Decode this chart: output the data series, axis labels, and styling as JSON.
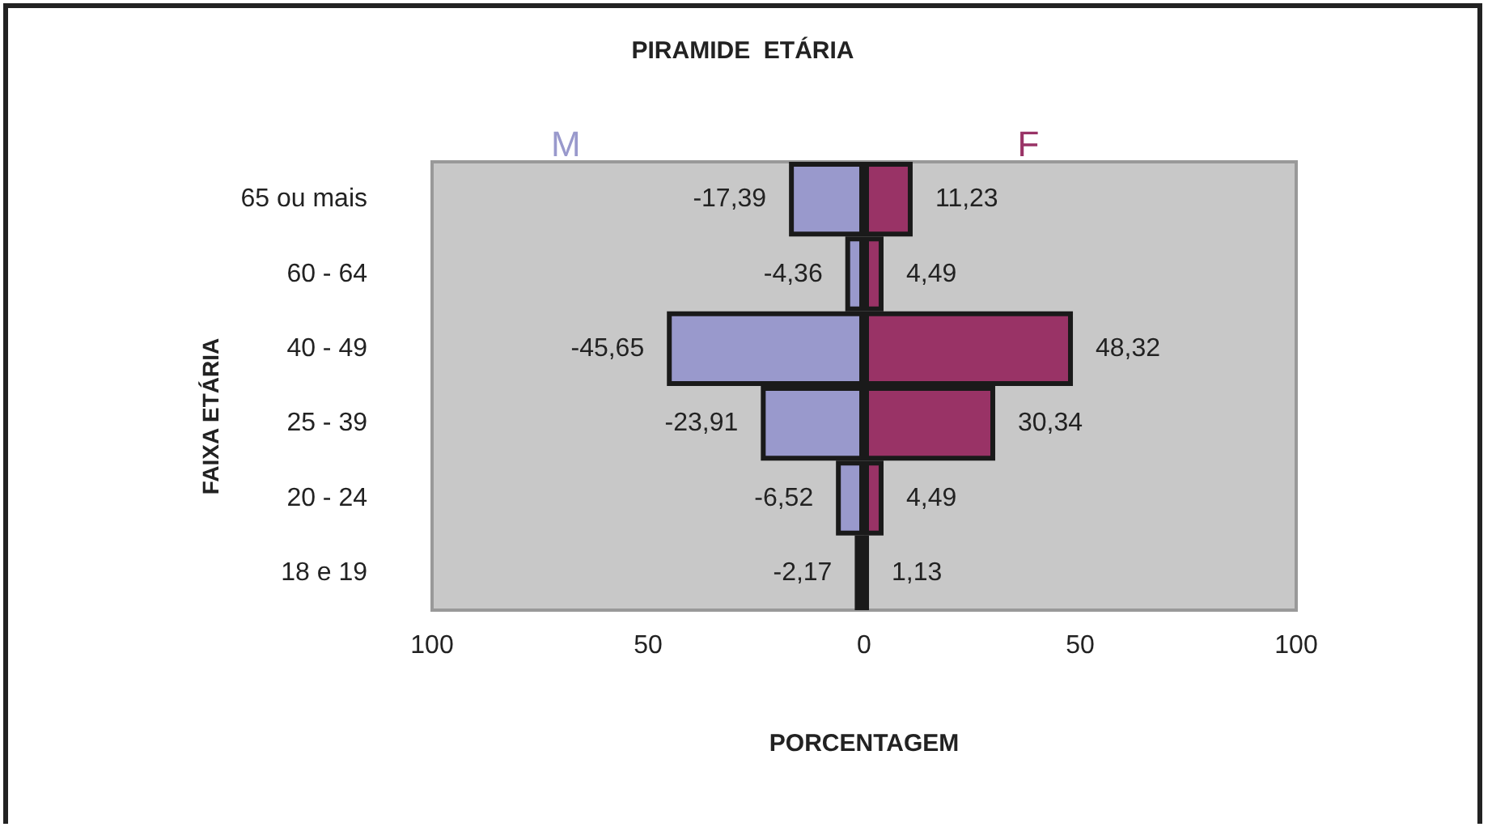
{
  "chart_data": {
    "type": "bar",
    "title": "PIRAMIDE  ETÁRIA",
    "xlabel": "PORCENTAGEM",
    "ylabel": "FAIXA ETÁRIA",
    "orientation": "horizontal",
    "stacked": true,
    "categories": [
      "65 ou mais",
      "60 - 64",
      "40 - 49",
      "25 - 39",
      "20 - 24",
      "18 e 19"
    ],
    "series": [
      {
        "name": "M",
        "color": "#9999cc",
        "values": [
          -17.39,
          -4.36,
          -45.65,
          -23.91,
          -6.52,
          -2.17
        ],
        "value_labels": [
          "-17,39",
          "-4,36",
          "-45,65",
          "-23,91",
          "-6,52",
          "-2,17"
        ]
      },
      {
        "name": "F",
        "color": "#993366",
        "values": [
          11.23,
          4.49,
          48.32,
          30.34,
          4.49,
          1.13
        ],
        "value_labels": [
          "11,23",
          "4,49",
          "48,32",
          "30,34",
          "4,49",
          "1,13"
        ]
      }
    ],
    "xlim": [
      -100,
      100
    ],
    "xticks": [
      {
        "value": -100,
        "label": "100"
      },
      {
        "value": -50,
        "label": "50"
      },
      0,
      50,
      100
    ],
    "grid": false,
    "legend": false
  }
}
